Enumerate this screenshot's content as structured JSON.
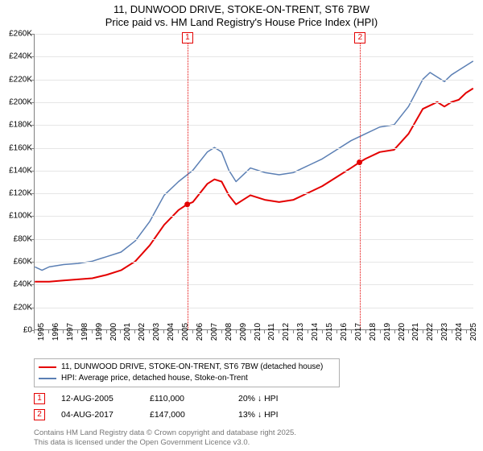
{
  "title_line1": "11, DUNWOOD DRIVE, STOKE-ON-TRENT, ST6 7BW",
  "title_line2": "Price paid vs. HM Land Registry's House Price Index (HPI)",
  "chart": {
    "type": "line",
    "background_color": "#ffffff",
    "grid_color": "#e6e6e6",
    "axis_color": "#7f7f7f",
    "xlim": [
      1995,
      2025.5
    ],
    "ylim": [
      0,
      260000
    ],
    "ytick_step": 20000,
    "y_ticks": [
      {
        "v": 0,
        "label": "£0"
      },
      {
        "v": 20000,
        "label": "£20K"
      },
      {
        "v": 40000,
        "label": "£40K"
      },
      {
        "v": 60000,
        "label": "£60K"
      },
      {
        "v": 80000,
        "label": "£80K"
      },
      {
        "v": 100000,
        "label": "£100K"
      },
      {
        "v": 120000,
        "label": "£120K"
      },
      {
        "v": 140000,
        "label": "£140K"
      },
      {
        "v": 160000,
        "label": "£160K"
      },
      {
        "v": 180000,
        "label": "£180K"
      },
      {
        "v": 200000,
        "label": "£200K"
      },
      {
        "v": 220000,
        "label": "£220K"
      },
      {
        "v": 240000,
        "label": "£240K"
      },
      {
        "v": 260000,
        "label": "£260K"
      }
    ],
    "x_ticks": [
      1995,
      1996,
      1997,
      1998,
      1999,
      2000,
      2001,
      2002,
      2003,
      2004,
      2005,
      2006,
      2007,
      2008,
      2009,
      2010,
      2011,
      2012,
      2013,
      2014,
      2015,
      2016,
      2017,
      2018,
      2019,
      2020,
      2021,
      2022,
      2023,
      2024,
      2025
    ],
    "series": [
      {
        "name": "property",
        "color": "#e40000",
        "line_width": 2,
        "label": "11, DUNWOOD DRIVE, STOKE-ON-TRENT, ST6 7BW (detached house)",
        "points": [
          [
            1995,
            42000
          ],
          [
            1996,
            42000
          ],
          [
            1997,
            43000
          ],
          [
            1998,
            44000
          ],
          [
            1999,
            45000
          ],
          [
            2000,
            48000
          ],
          [
            2001,
            52000
          ],
          [
            2002,
            60000
          ],
          [
            2003,
            74000
          ],
          [
            2004,
            92000
          ],
          [
            2005,
            105000
          ],
          [
            2005.6,
            110000
          ],
          [
            2006,
            112000
          ],
          [
            2006.5,
            120000
          ],
          [
            2007,
            128000
          ],
          [
            2007.5,
            132000
          ],
          [
            2008,
            130000
          ],
          [
            2008.5,
            118000
          ],
          [
            2009,
            110000
          ],
          [
            2009.5,
            114000
          ],
          [
            2010,
            118000
          ],
          [
            2011,
            114000
          ],
          [
            2012,
            112000
          ],
          [
            2013,
            114000
          ],
          [
            2014,
            120000
          ],
          [
            2015,
            126000
          ],
          [
            2016,
            134000
          ],
          [
            2017,
            142000
          ],
          [
            2017.6,
            147000
          ],
          [
            2018,
            150000
          ],
          [
            2019,
            156000
          ],
          [
            2020,
            158000
          ],
          [
            2021,
            172000
          ],
          [
            2022,
            194000
          ],
          [
            2023,
            200000
          ],
          [
            2023.5,
            196000
          ],
          [
            2024,
            200000
          ],
          [
            2024.5,
            202000
          ],
          [
            2025,
            208000
          ],
          [
            2025.5,
            212000
          ]
        ]
      },
      {
        "name": "hpi",
        "color": "#5b7fb4",
        "line_width": 1.5,
        "label": "HPI: Average price, detached house, Stoke-on-Trent",
        "points": [
          [
            1995,
            55000
          ],
          [
            1995.5,
            52000
          ],
          [
            1996,
            55000
          ],
          [
            1997,
            57000
          ],
          [
            1998,
            58000
          ],
          [
            1999,
            60000
          ],
          [
            2000,
            64000
          ],
          [
            2001,
            68000
          ],
          [
            2002,
            78000
          ],
          [
            2003,
            95000
          ],
          [
            2004,
            118000
          ],
          [
            2005,
            130000
          ],
          [
            2006,
            140000
          ],
          [
            2006.5,
            148000
          ],
          [
            2007,
            156000
          ],
          [
            2007.5,
            160000
          ],
          [
            2008,
            156000
          ],
          [
            2008.5,
            140000
          ],
          [
            2009,
            130000
          ],
          [
            2009.5,
            136000
          ],
          [
            2010,
            142000
          ],
          [
            2011,
            138000
          ],
          [
            2012,
            136000
          ],
          [
            2013,
            138000
          ],
          [
            2014,
            144000
          ],
          [
            2015,
            150000
          ],
          [
            2016,
            158000
          ],
          [
            2017,
            166000
          ],
          [
            2018,
            172000
          ],
          [
            2019,
            178000
          ],
          [
            2020,
            180000
          ],
          [
            2021,
            196000
          ],
          [
            2022,
            220000
          ],
          [
            2022.5,
            226000
          ],
          [
            2023,
            222000
          ],
          [
            2023.5,
            218000
          ],
          [
            2024,
            224000
          ],
          [
            2024.5,
            228000
          ],
          [
            2025,
            232000
          ],
          [
            2025.5,
            236000
          ]
        ]
      }
    ],
    "markers": [
      {
        "id": "1",
        "x": 2005.61
      },
      {
        "id": "2",
        "x": 2017.59
      }
    ],
    "label_fontsize": 10,
    "title_fontsize": 13
  },
  "legend": {
    "border_color": "#b0b0b0",
    "items": [
      {
        "color": "#e40000",
        "width": 2,
        "label": "11, DUNWOOD DRIVE, STOKE-ON-TRENT, ST6 7BW (detached house)"
      },
      {
        "color": "#5b7fb4",
        "width": 1.5,
        "label": "HPI: Average price, detached house, Stoke-on-Trent"
      }
    ]
  },
  "annotations": [
    {
      "marker": "1",
      "date": "12-AUG-2005",
      "price": "£110,000",
      "delta": "20% ↓ HPI"
    },
    {
      "marker": "2",
      "date": "04-AUG-2017",
      "price": "£147,000",
      "delta": "13% ↓ HPI"
    }
  ],
  "footer": {
    "line1": "Contains HM Land Registry data © Crown copyright and database right 2025.",
    "line2": "This data is licensed under the Open Government Licence v3.0."
  }
}
